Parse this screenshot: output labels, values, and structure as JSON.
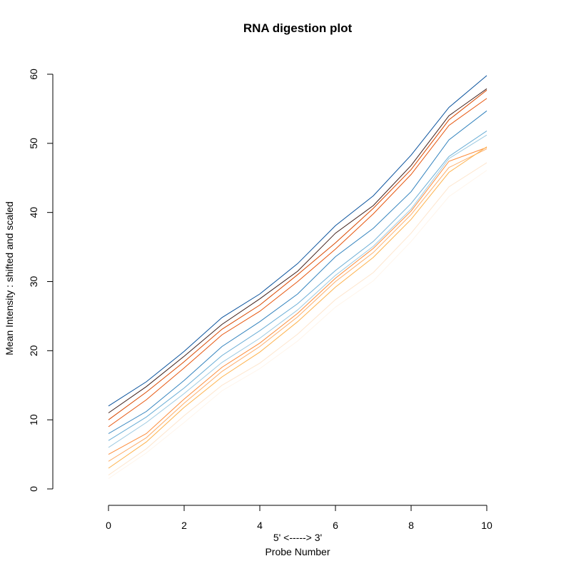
{
  "chart_data": {
    "type": "line",
    "title": "RNA digestion plot",
    "xlabel_line1": "5' <-----> 3'",
    "xlabel_line2": "Probe Number",
    "ylabel": "Mean Intensity : shifted and scaled",
    "xlim": [
      0,
      10
    ],
    "ylim": [
      0,
      60
    ],
    "x_ticks": [
      0,
      2,
      4,
      6,
      8,
      10
    ],
    "y_ticks": [
      0,
      10,
      20,
      30,
      40,
      50,
      60
    ],
    "grid": false,
    "x": [
      0,
      1,
      2,
      3,
      4,
      5,
      6,
      7,
      8,
      9,
      10
    ],
    "series": [
      {
        "color": "#08519c",
        "values": [
          12,
          15.5,
          19.9,
          24.8,
          28.2,
          32.6,
          38.1,
          42.4,
          48.3,
          55.2,
          59.8
        ]
      },
      {
        "color": "#3f1f1a",
        "values": [
          11,
          14.8,
          19.2,
          23.8,
          27.5,
          31.5,
          37.0,
          41.0,
          46.8,
          54.0,
          57.9
        ]
      },
      {
        "color": "#d94801",
        "values": [
          10,
          14.0,
          18.4,
          23.1,
          26.6,
          31.0,
          35.6,
          40.6,
          46.2,
          53.4,
          57.7
        ]
      },
      {
        "color": "#e6550d",
        "values": [
          9,
          12.9,
          17.5,
          22.3,
          25.7,
          30.0,
          34.7,
          39.8,
          45.5,
          52.6,
          56.5
        ]
      },
      {
        "color": "#3182bd",
        "values": [
          8,
          11.2,
          15.7,
          20.6,
          24.2,
          28.2,
          33.6,
          37.7,
          43.0,
          50.5,
          54.7
        ]
      },
      {
        "color": "#6baed6",
        "values": [
          7,
          10.4,
          14.6,
          19.3,
          22.9,
          26.8,
          31.6,
          35.8,
          41.3,
          48.1,
          51.8
        ]
      },
      {
        "color": "#9ecae1",
        "values": [
          6,
          9.6,
          13.8,
          18.3,
          21.8,
          25.9,
          30.9,
          35.1,
          40.5,
          47.8,
          51.2
        ]
      },
      {
        "color": "#fd8d3c",
        "values": [
          5,
          8.0,
          13.0,
          17.6,
          21.1,
          25.4,
          30.5,
          34.8,
          40.2,
          47.4,
          49.4
        ]
      },
      {
        "color": "#fdae6b",
        "values": [
          4,
          7.4,
          12.4,
          17.0,
          20.6,
          24.9,
          30.0,
          34.2,
          39.7,
          46.5,
          49.2
        ]
      },
      {
        "color": "#feb24c",
        "values": [
          3,
          6.8,
          11.8,
          16.2,
          19.8,
          24.2,
          29.2,
          33.5,
          39.0,
          45.8,
          49.5
        ]
      },
      {
        "color": "#fee6ce",
        "values": [
          2,
          5.8,
          10.6,
          15.0,
          18.2,
          22.4,
          27.4,
          31.3,
          37.0,
          43.7,
          47.2
        ]
      },
      {
        "color": "#fff5eb",
        "values": [
          1.5,
          5.2,
          9.6,
          14.2,
          17.4,
          21.4,
          26.3,
          30.1,
          35.8,
          42.3,
          46.1
        ]
      }
    ]
  }
}
